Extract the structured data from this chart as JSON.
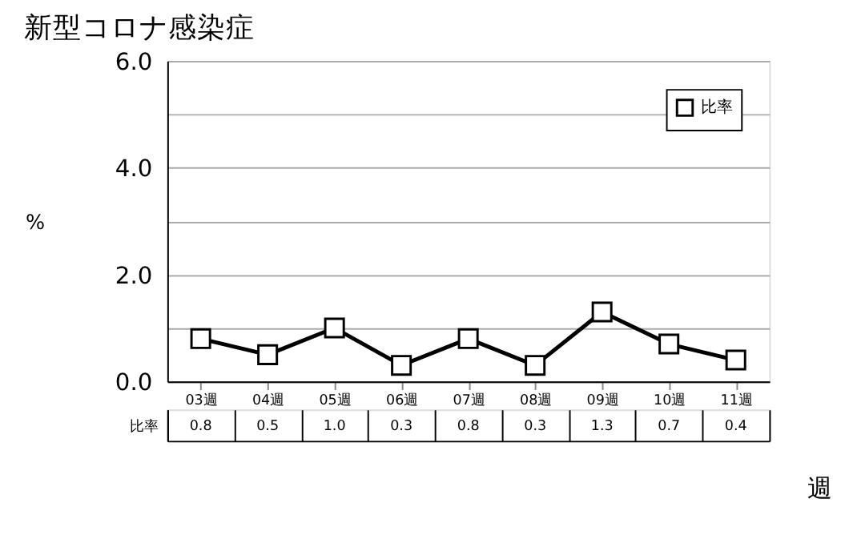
{
  "chart_data": {
    "type": "line",
    "title": "新型コロナ感染症",
    "ylabel": "%",
    "xlabel": "週",
    "categories": [
      "03週",
      "04週",
      "05週",
      "06週",
      "07週",
      "08週",
      "09週",
      "10週",
      "11週"
    ],
    "series": [
      {
        "name": "比率",
        "color": "#000000",
        "values": [
          0.8,
          0.5,
          1.0,
          0.3,
          0.8,
          0.3,
          1.3,
          0.7,
          0.4
        ],
        "value_labels": [
          "0.8",
          "0.5",
          "1.0",
          "0.3",
          "0.8",
          "0.3",
          "1.3",
          "0.7",
          "0.4"
        ]
      }
    ],
    "ylim": [
      0,
      6
    ],
    "yticks": [
      {
        "value": 0,
        "label": "0.0"
      },
      {
        "value": 1,
        "label": null
      },
      {
        "value": 2,
        "label": "2.0"
      },
      {
        "value": 3,
        "label": null
      },
      {
        "value": 4,
        "label": "4.0"
      },
      {
        "value": 5,
        "label": null
      },
      {
        "value": 6,
        "label": "6.0"
      }
    ],
    "grid": "y",
    "legend": "top right",
    "marker": "square",
    "line_style": "solid"
  }
}
